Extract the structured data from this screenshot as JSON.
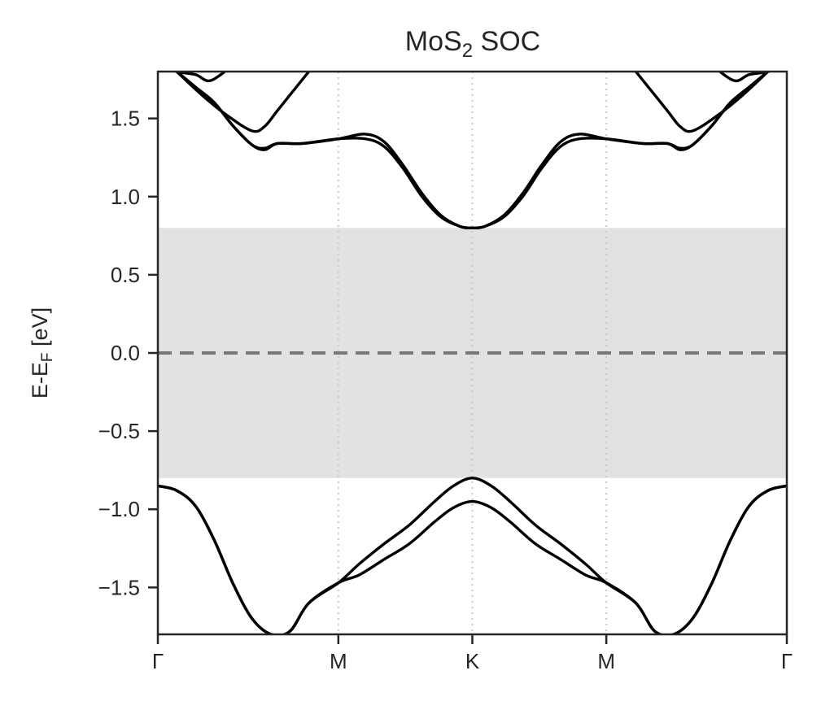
{
  "chart_data": {
    "type": "line",
    "title": "MoS2 SOC",
    "title_main": "MoS",
    "title_sub": "2",
    "title_tail": " SOC",
    "ylabel": "E-E",
    "ylabel_sub": "F",
    "ylabel_tail": " [eV]",
    "xlabel": "",
    "ylim": [
      -1.8,
      1.8
    ],
    "xlim": [
      0,
      1
    ],
    "grid": false,
    "kpath": {
      "positions": [
        0,
        0.287,
        0.5,
        0.713,
        1
      ],
      "labels": [
        "Γ",
        "M",
        "K",
        "M",
        "Γ"
      ]
    },
    "y_ticks": [
      -1.5,
      -1.0,
      -0.5,
      0.0,
      0.5,
      1.0,
      1.5
    ],
    "y_tick_labels": [
      "−1.5",
      "−1.0",
      "−0.5",
      "0.0",
      "0.5",
      "1.0",
      "1.5"
    ],
    "fermi_level": 0.0,
    "band_gap": {
      "vbm": -0.8,
      "cbm": 0.8
    },
    "colors": {
      "bands": "#000000",
      "fermi_line": "#777777",
      "gap_fill": "#e2e2e2",
      "kpath_lines": "#c8c8c8",
      "axes": "#262626"
    },
    "series": [
      {
        "x": [
          0,
          0.03,
          0.06,
          0.09,
          0.12,
          0.15,
          0.18,
          0.21,
          0.24,
          0.287,
          0.32,
          0.36,
          0.4,
          0.44,
          0.47,
          0.5,
          0.53,
          0.56,
          0.6,
          0.64,
          0.68,
          0.713,
          0.76,
          0.79,
          0.82,
          0.85,
          0.88,
          0.91,
          0.94,
          0.97,
          1.0
        ],
        "values": [
          -0.85,
          -0.88,
          -0.98,
          -1.2,
          -1.48,
          -1.7,
          -1.8,
          -1.78,
          -1.6,
          -1.47,
          -1.35,
          -1.22,
          -1.1,
          -0.95,
          -0.85,
          -0.8,
          -0.85,
          -0.95,
          -1.1,
          -1.22,
          -1.35,
          -1.47,
          -1.6,
          -1.78,
          -1.8,
          -1.7,
          -1.48,
          -1.2,
          -0.98,
          -0.88,
          -0.85
        ]
      },
      {
        "x": [
          0,
          0.03,
          0.06,
          0.09,
          0.12,
          0.15,
          0.18,
          0.21,
          0.24,
          0.287,
          0.32,
          0.36,
          0.4,
          0.44,
          0.47,
          0.5,
          0.53,
          0.56,
          0.6,
          0.64,
          0.68,
          0.713,
          0.76,
          0.79,
          0.82,
          0.85,
          0.88,
          0.91,
          0.94,
          0.97,
          1.0
        ],
        "values": [
          -0.85,
          -0.88,
          -0.98,
          -1.2,
          -1.48,
          -1.7,
          -1.8,
          -1.78,
          -1.6,
          -1.47,
          -1.42,
          -1.32,
          -1.22,
          -1.08,
          -0.99,
          -0.95,
          -0.99,
          -1.08,
          -1.22,
          -1.32,
          -1.42,
          -1.47,
          -1.6,
          -1.78,
          -1.8,
          -1.7,
          -1.48,
          -1.2,
          -0.98,
          -0.88,
          -0.85
        ]
      },
      {
        "x": [
          0.03,
          0.06,
          0.09,
          0.12,
          0.15,
          0.17,
          0.19,
          0.23,
          0.287,
          0.33,
          0.36,
          0.39,
          0.42,
          0.45,
          0.48,
          0.5,
          0.52,
          0.55,
          0.58,
          0.61,
          0.64,
          0.67,
          0.713,
          0.77,
          0.81,
          0.83,
          0.85,
          0.88,
          0.91,
          0.94,
          0.97
        ],
        "values": [
          1.8,
          1.7,
          1.6,
          1.45,
          1.33,
          1.3,
          1.34,
          1.34,
          1.37,
          1.4,
          1.35,
          1.2,
          1.02,
          0.88,
          0.81,
          0.8,
          0.81,
          0.88,
          1.02,
          1.2,
          1.35,
          1.4,
          1.37,
          1.34,
          1.34,
          1.3,
          1.33,
          1.45,
          1.6,
          1.7,
          1.8
        ]
      },
      {
        "x": [
          0.03,
          0.06,
          0.09,
          0.12,
          0.15,
          0.17,
          0.19,
          0.23,
          0.287,
          0.33,
          0.36,
          0.39,
          0.42,
          0.45,
          0.48,
          0.5,
          0.52,
          0.55,
          0.58,
          0.61,
          0.64,
          0.67,
          0.713,
          0.77,
          0.81,
          0.83,
          0.85,
          0.88,
          0.91,
          0.94,
          0.97
        ],
        "values": [
          1.8,
          1.7,
          1.6,
          1.45,
          1.33,
          1.31,
          1.34,
          1.34,
          1.37,
          1.37,
          1.32,
          1.18,
          1.0,
          0.87,
          0.81,
          0.8,
          0.81,
          0.87,
          1.0,
          1.18,
          1.32,
          1.37,
          1.37,
          1.34,
          1.34,
          1.31,
          1.33,
          1.45,
          1.6,
          1.7,
          1.8
        ]
      },
      {
        "x": [
          0.03,
          0.07,
          0.11,
          0.15,
          0.17,
          0.19,
          0.22,
          0.25
        ],
        "values": [
          1.8,
          1.65,
          1.52,
          1.42,
          1.45,
          1.55,
          1.7,
          1.85
        ]
      },
      {
        "x": [
          0.75,
          0.78,
          0.81,
          0.83,
          0.85,
          0.89,
          0.93,
          0.97
        ],
        "values": [
          1.85,
          1.7,
          1.55,
          1.45,
          1.42,
          1.52,
          1.65,
          1.8
        ]
      },
      {
        "x": [
          0.0,
          0.03,
          0.06,
          0.08,
          0.1,
          0.12
        ],
        "values": [
          1.85,
          1.8,
          1.78,
          1.74,
          1.78,
          1.85
        ]
      },
      {
        "x": [
          0.88,
          0.9,
          0.92,
          0.94,
          0.97,
          1.0
        ],
        "values": [
          1.85,
          1.78,
          1.74,
          1.78,
          1.8,
          1.85
        ]
      }
    ]
  }
}
